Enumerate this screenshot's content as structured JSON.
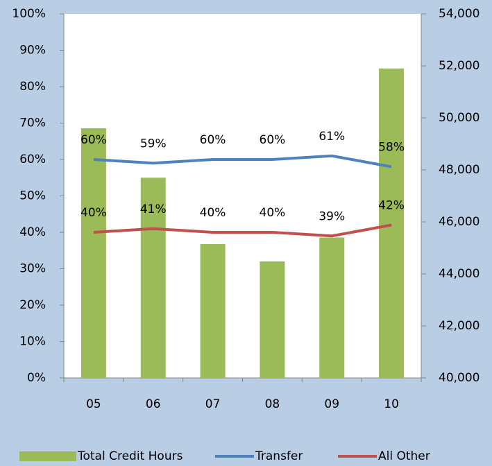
{
  "chart_data": {
    "type": "bar_line",
    "categories": [
      "05",
      "06",
      "07",
      "08",
      "09",
      "10"
    ],
    "series": [
      {
        "name": "Total Credit Hours",
        "type": "bar",
        "axis": "y2",
        "color": "#9bbb59",
        "values": [
          49600,
          47700,
          45150,
          44480,
          45400,
          51900
        ]
      },
      {
        "name": "Transfer",
        "type": "line",
        "axis": "y",
        "color": "#4f81bd",
        "values": [
          60,
          59,
          60,
          60,
          61,
          58
        ],
        "value_labels": [
          "60%",
          "59%",
          "60%",
          "60%",
          "61%",
          "58%"
        ]
      },
      {
        "name": "All Other",
        "type": "line",
        "axis": "y",
        "color": "#c0504d",
        "values": [
          40,
          41,
          40,
          40,
          39,
          42
        ],
        "value_labels": [
          "40%",
          "41%",
          "40%",
          "40%",
          "39%",
          "42%"
        ]
      }
    ],
    "ylim": [
      0,
      100
    ],
    "yticks": [
      {
        "value": 0,
        "label": "0%"
      },
      {
        "value": 10,
        "label": "10%"
      },
      {
        "value": 20,
        "label": "20%"
      },
      {
        "value": 30,
        "label": "30%"
      },
      {
        "value": 40,
        "label": "40%"
      },
      {
        "value": 50,
        "label": "50%"
      },
      {
        "value": 60,
        "label": "60%"
      },
      {
        "value": 70,
        "label": "70%"
      },
      {
        "value": 80,
        "label": "80%"
      },
      {
        "value": 90,
        "label": "90%"
      },
      {
        "value": 100,
        "label": "100%"
      }
    ],
    "y2lim": [
      40000,
      54000
    ],
    "y2ticks": [
      {
        "value": 40000,
        "label": "40,000"
      },
      {
        "value": 42000,
        "label": "42,000"
      },
      {
        "value": 44000,
        "label": "44,000"
      },
      {
        "value": 46000,
        "label": "46,000"
      },
      {
        "value": 48000,
        "label": "48,000"
      },
      {
        "value": 50000,
        "label": "50,000"
      },
      {
        "value": 52000,
        "label": "52,000"
      },
      {
        "value": 54000,
        "label": "54,000"
      }
    ],
    "legend": "bottom"
  }
}
